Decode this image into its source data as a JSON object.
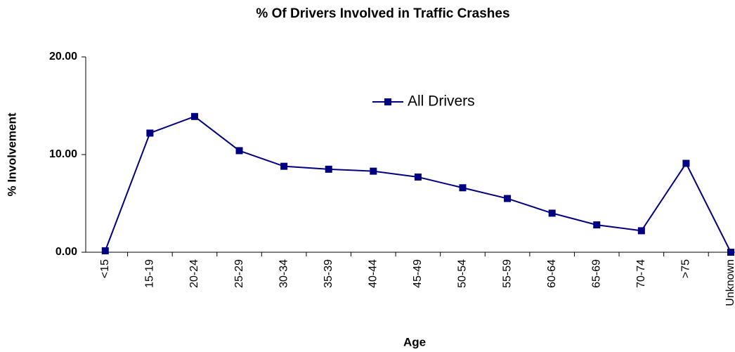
{
  "chart_data": {
    "type": "line",
    "title": "% Of Drivers Involved in Traffic Crashes",
    "x_label": "Age",
    "y_label": "% Involvement",
    "categories": [
      "<15",
      "15-19",
      "20-24",
      "25-29",
      "30-34",
      "35-39",
      "40-44",
      "45-49",
      "50-54",
      "55-59",
      "60-64",
      "65-69",
      "70-74",
      ">75",
      "Unknown"
    ],
    "series": [
      {
        "name": "All Drivers",
        "color": "#000080",
        "values": [
          0.15,
          12.2,
          13.9,
          10.4,
          8.8,
          8.5,
          8.3,
          7.7,
          6.6,
          5.5,
          4.0,
          2.8,
          2.2,
          9.1,
          0.0
        ]
      }
    ],
    "ylim": [
      0,
      20
    ],
    "yticks": [
      {
        "value": 0,
        "label": "0.00"
      },
      {
        "value": 10,
        "label": "10.00"
      },
      {
        "value": 20,
        "label": "20.00"
      }
    ],
    "grid": false
  }
}
